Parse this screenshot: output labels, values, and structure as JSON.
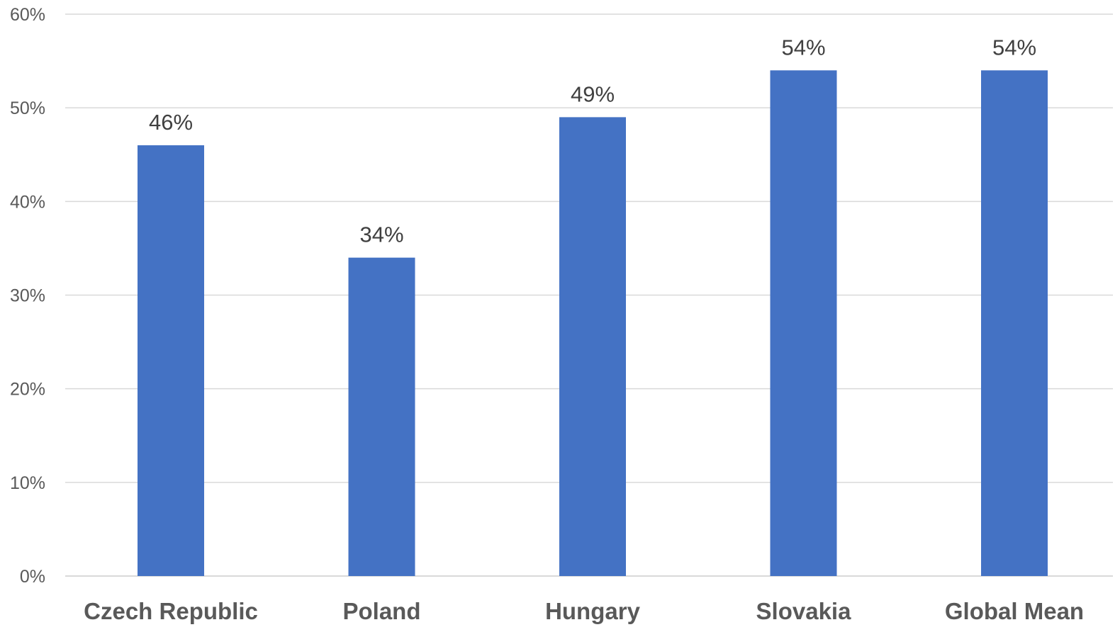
{
  "chart_data": {
    "type": "bar",
    "categories": [
      "Czech Republic",
      "Poland",
      "Hungary",
      "Slovakia",
      "Global Mean"
    ],
    "values": [
      46,
      34,
      49,
      54,
      54
    ],
    "data_labels": [
      "46%",
      "34%",
      "49%",
      "54%",
      "54%"
    ],
    "ylim": [
      0,
      60
    ],
    "y_ticks": [
      0,
      10,
      20,
      30,
      40,
      50,
      60
    ],
    "y_tick_labels": [
      "0%",
      "10%",
      "20%",
      "30%",
      "40%",
      "50%",
      "60%"
    ],
    "title": "",
    "xlabel": "",
    "ylabel": "",
    "grid": true,
    "legend": "none",
    "bar_color": "#4472c4"
  }
}
